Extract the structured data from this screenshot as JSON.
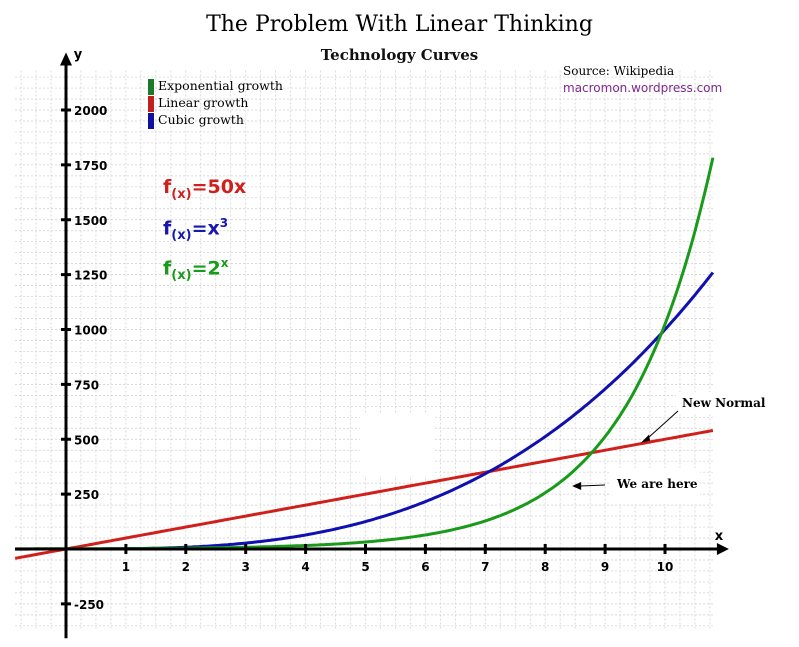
{
  "chart_data": {
    "type": "line",
    "title": "The Problem With Linear Thinking",
    "subtitle": "Technology Curves",
    "xlabel": "x",
    "ylabel": "y",
    "xlim": [
      -0.85,
      10.8
    ],
    "ylim": [
      -370,
      2180
    ],
    "x_ticks": [
      1,
      2,
      3,
      4,
      5,
      6,
      7,
      8,
      9,
      10
    ],
    "y_ticks": [
      -250,
      250,
      500,
      750,
      1000,
      1250,
      1500,
      1750,
      2000
    ],
    "grid": true,
    "legend_position": "top-left",
    "series": [
      {
        "name": "Exponential growth",
        "formula": "2^x",
        "color": "#1a9a1a"
      },
      {
        "name": "Linear growth",
        "formula": "50x",
        "color": "#d0201c"
      },
      {
        "name": "Cubic growth",
        "formula": "x^3",
        "color": "#1010b0"
      }
    ],
    "formulas": [
      {
        "f": "f",
        "sub": "(x)",
        "eq": "=50x",
        "sup": "",
        "color": "#d0201c"
      },
      {
        "f": "f",
        "sub": "(x)",
        "eq": "=x",
        "sup": "3",
        "color": "#1818b0"
      },
      {
        "f": "f",
        "sub": "(x)",
        "eq": "=2",
        "sup": "x",
        "color": "#1a9a1a"
      }
    ],
    "annotations": [
      {
        "text": "New Normal",
        "points_to_x": 9.7,
        "points_to_y": 480
      },
      {
        "text": "We are here",
        "points_to_x": 8.45,
        "points_to_y": 250
      }
    ],
    "source": "Source:  Wikipedia",
    "site": "macromon.wordpress.com"
  }
}
